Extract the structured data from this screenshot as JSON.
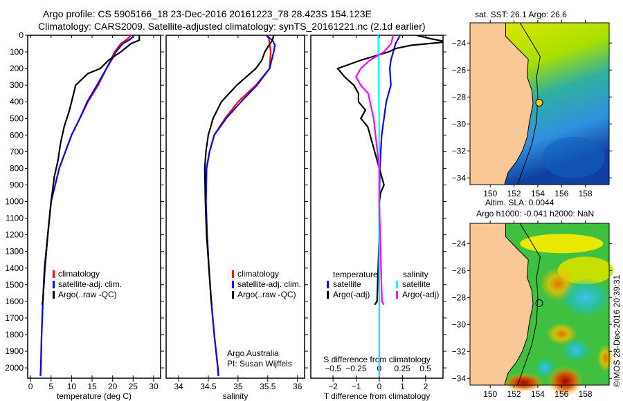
{
  "title_line1": "Argo profile: CS 5905166_18 23-Dec-2016 20161223_78 28.423S 154.123E",
  "title_line2": "Climatology: CARS2009. Satellite-adjusted climatology: synTS_20161221.nc (2.1d earlier)",
  "colors": {
    "climatology": "#ff0000",
    "satellite": "#0000ff",
    "argo": "#000000",
    "sal_satellite": "#00ffff",
    "sal_argo": "#ff00ff",
    "land": "#f9c896"
  },
  "chart_data": [
    {
      "type": "line",
      "xlabel": "temperature (deg C)",
      "ylabel": "",
      "xlim": [
        -0.7,
        31.7
      ],
      "ylim": [
        2062,
        0
      ],
      "xticks": [
        0,
        5,
        10,
        15,
        20,
        25,
        30
      ],
      "yticks": [
        0,
        100,
        200,
        300,
        400,
        500,
        600,
        700,
        800,
        900,
        1000,
        1100,
        1200,
        1300,
        1400,
        1500,
        1600,
        1700,
        1800,
        1900,
        2000
      ],
      "legend": [
        "climatology",
        "satellite-adj. clim.",
        "Argo(..raw -QC)"
      ],
      "series": [
        {
          "name": "climatology",
          "color": "#ff0000",
          "depth": [
            0,
            25,
            50,
            100,
            150,
            200,
            300,
            400,
            500,
            600,
            700,
            800,
            900,
            1000,
            1200,
            1400,
            1600,
            1800,
            2000,
            2050
          ],
          "values": [
            24.5,
            23.5,
            22,
            20.5,
            19.5,
            18.5,
            16.5,
            14,
            12,
            10,
            8.5,
            7,
            6,
            5,
            4.2,
            3.5,
            3,
            2.7,
            2.5,
            2.4
          ]
        },
        {
          "name": "satellite-adj. clim.",
          "color": "#0000ff",
          "depth": [
            0,
            25,
            50,
            100,
            150,
            200,
            300,
            400,
            500,
            600,
            700,
            800,
            900,
            1000,
            1200,
            1400,
            1600,
            1800,
            2000,
            2050
          ],
          "values": [
            25.2,
            24.3,
            22.5,
            20.8,
            19.7,
            18.5,
            16.2,
            13.8,
            12,
            10,
            8.5,
            7,
            6,
            5,
            4.2,
            3.5,
            3,
            2.7,
            2.5,
            2.4
          ]
        },
        {
          "name": "Argo(..raw -QC)",
          "color": "#000000",
          "depth": [
            0,
            30,
            50,
            100,
            150,
            200,
            230,
            300,
            370,
            450,
            550,
            650,
            750,
            850,
            1000,
            1200,
            1400,
            1600,
            1620
          ],
          "values": [
            26.5,
            26.5,
            24.5,
            22,
            19,
            17,
            14,
            11,
            10.3,
            9.5,
            8.2,
            7.3,
            6.7,
            5.8,
            5,
            4.2,
            3.4,
            3,
            2.8
          ]
        }
      ]
    },
    {
      "type": "line",
      "xlabel": "salinity",
      "xlim": [
        33.79,
        36.12
      ],
      "ylim": [
        2062,
        0
      ],
      "xticks": [
        34,
        34.5,
        35,
        35.5,
        36
      ],
      "legend": [
        "climatology",
        "satellite-adj. clim.",
        "Argo(..raw -QC)"
      ],
      "annotation": [
        "Argo Australia",
        "PI: Susan Wijffels"
      ],
      "series": [
        {
          "name": "climatology",
          "color": "#ff0000",
          "depth": [
            0,
            100,
            200,
            300,
            400,
            500,
            600,
            700,
            800,
            1000,
            1200,
            1400,
            1600,
            1800,
            2000,
            2050
          ],
          "values": [
            35.51,
            35.55,
            35.53,
            35.3,
            35.0,
            34.78,
            34.6,
            34.52,
            34.47,
            34.46,
            34.48,
            34.51,
            34.55,
            34.6,
            34.66,
            34.67
          ]
        },
        {
          "name": "satellite-adj. clim.",
          "color": "#0000ff",
          "depth": [
            0,
            30,
            60,
            100,
            200,
            300,
            400,
            500,
            600,
            700,
            800,
            1000,
            1200,
            1400,
            1600,
            1800,
            2000,
            2050
          ],
          "values": [
            35.47,
            35.58,
            35.62,
            35.6,
            35.53,
            35.32,
            35.05,
            34.8,
            34.6,
            34.52,
            34.47,
            34.46,
            34.48,
            34.51,
            34.55,
            34.6,
            34.66,
            34.67
          ]
        },
        {
          "name": "Argo(..raw -QC)",
          "color": "#000000",
          "depth": [
            0,
            30,
            60,
            100,
            150,
            200,
            300,
            400,
            500,
            600,
            700,
            800,
            1000,
            1200,
            1400,
            1600,
            1620
          ],
          "values": [
            35.6,
            35.58,
            35.52,
            35.45,
            35.4,
            35.3,
            34.98,
            34.72,
            34.58,
            34.5,
            34.46,
            34.44,
            34.45,
            34.47,
            34.51,
            34.55,
            34.56
          ]
        }
      ]
    },
    {
      "type": "line",
      "xlabel": "T difference from climatology",
      "x2label": "S difference from climatology",
      "xlim": [
        -2.96,
        2.75
      ],
      "x2lim": [
        -0.74,
        0.69
      ],
      "ylim": [
        2062,
        0
      ],
      "xticks": [
        -2,
        -1,
        0,
        1,
        2
      ],
      "x2ticks": [
        -0.5,
        -0.25,
        0,
        0.25,
        0.5
      ],
      "legend_temperature_title": "temperature",
      "legend_salinity_title": "salinity",
      "legend": [
        "satellite",
        "Argo(-adj)",
        "satellite",
        "Argo(-adj)"
      ],
      "series": [
        {
          "name": "T satellite",
          "color": "#0000ff",
          "axis": "T",
          "depth": [
            0,
            50,
            100,
            150,
            200,
            300,
            400,
            500,
            600,
            800,
            1000,
            2050
          ],
          "values": [
            0.9,
            0.7,
            0.6,
            0.5,
            0.45,
            0.5,
            0.3,
            0.2,
            0.1,
            0.02,
            0,
            0
          ]
        },
        {
          "name": "T Argo(-adj)",
          "color": "#000000",
          "axis": "T",
          "depth": [
            0,
            20,
            40,
            60,
            80,
            100,
            150,
            200,
            250,
            300,
            350,
            400,
            450,
            500,
            550,
            600,
            700,
            800,
            900,
            950,
            1000,
            1200,
            1400,
            1600,
            1620
          ],
          "values": [
            1.6,
            2.2,
            2.9,
            1.4,
            0.7,
            0.4,
            -0.8,
            -1.8,
            -1.5,
            -1.1,
            -0.9,
            -0.9,
            -0.6,
            -0.8,
            -0.5,
            -0.4,
            -0.2,
            0,
            0.2,
            0.05,
            0,
            0,
            -0.05,
            -0.1,
            -0.2
          ]
        },
        {
          "name": "S satellite",
          "color": "#00ffff",
          "axis": "S",
          "depth": [
            0,
            100,
            300,
            600,
            1000,
            2050
          ],
          "values": [
            -0.01,
            -0.01,
            -0.005,
            0,
            0,
            0
          ]
        },
        {
          "name": "S Argo(-adj)",
          "color": "#ff00ff",
          "axis": "S",
          "depth": [
            0,
            50,
            100,
            150,
            200,
            250,
            300,
            350,
            400,
            500,
            600,
            700,
            800,
            1000,
            1200,
            1400,
            1600,
            1620
          ],
          "values": [
            0.15,
            0.13,
            0.05,
            -0.1,
            -0.2,
            -0.25,
            -0.2,
            -0.12,
            -0.1,
            -0.06,
            -0.04,
            -0.02,
            0,
            0,
            0.01,
            0.02,
            0.03,
            0.05
          ]
        }
      ]
    }
  ],
  "maps": [
    {
      "title": "sat. SST: 26.1  Argo: 26.6",
      "lon_ticks": [
        150,
        152,
        154,
        156,
        158
      ],
      "lat_ticks": [
        -24,
        -26,
        -28,
        -30,
        -32,
        -34
      ],
      "lon_range": [
        148.3,
        160
      ],
      "lat_range": [
        -22.5,
        -34.5
      ],
      "argo_lon": 154.12,
      "argo_lat": -28.42
    },
    {
      "title_line1": "Altim. SLA: 0.0044",
      "title_line2": "Argo h1000: -0.041 h2000: NaN",
      "lon_ticks": [
        150,
        152,
        154,
        156,
        158
      ],
      "lat_ticks": [
        -24,
        -26,
        -28,
        -30,
        -32,
        -34
      ],
      "lon_range": [
        148.3,
        160
      ],
      "lat_range": [
        -22.5,
        -34.5
      ],
      "argo_lon": 154.12,
      "argo_lat": -28.42
    }
  ],
  "copyright": "©IMOS 28-Dec-2016 20:39:31"
}
